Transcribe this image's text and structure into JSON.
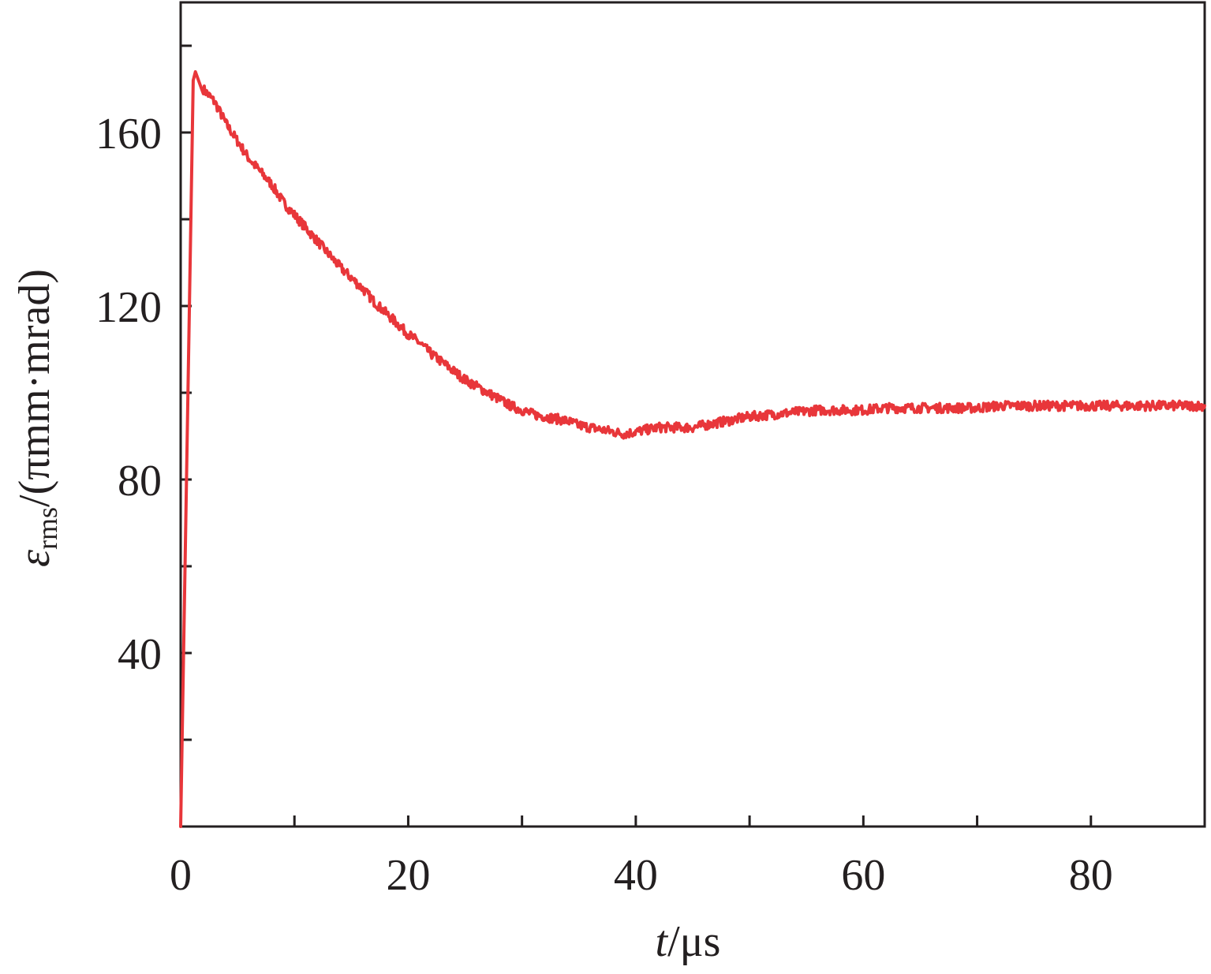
{
  "chart_data": {
    "type": "line",
    "title": "",
    "xlabel": {
      "var": "t",
      "unit": "/μs"
    },
    "ylabel": {
      "var": "ε",
      "sub": "rms",
      "unit": "/(πmm·mrad)"
    },
    "xlim": [
      0,
      90
    ],
    "ylim": [
      0,
      190
    ],
    "x_ticks": [
      0,
      20,
      40,
      60,
      80
    ],
    "x_minor_ticks": [
      10,
      30,
      50,
      70
    ],
    "y_ticks": [
      40,
      80,
      120,
      160
    ],
    "y_minor_ticks": [
      20,
      60,
      100,
      140,
      180
    ],
    "grid": false,
    "legend": "none",
    "series": [
      {
        "color": "#e8363a",
        "x": [
          0,
          1.1,
          1.3,
          2,
          3,
          4,
          5,
          6,
          7,
          8,
          9,
          10,
          11,
          12,
          13,
          14,
          15,
          16,
          17,
          18,
          19,
          20,
          21,
          22,
          23,
          24,
          25,
          26,
          27,
          28,
          29,
          30,
          31,
          32,
          33,
          34,
          35,
          36,
          37,
          38,
          39,
          40,
          41,
          42,
          43,
          44,
          45,
          46,
          47,
          48,
          49,
          50,
          52,
          54,
          56,
          58,
          60,
          62,
          64,
          66,
          68,
          70,
          72,
          74,
          76,
          78,
          80,
          82,
          84,
          86,
          88,
          90
        ],
        "y": [
          0,
          172,
          174,
          170,
          167,
          162,
          158,
          154,
          151,
          148,
          144,
          141,
          138,
          135,
          132,
          129,
          126.5,
          124,
          121,
          118.5,
          116,
          113.5,
          111.5,
          109,
          107,
          105,
          103,
          101.5,
          100,
          98.5,
          97,
          96,
          95,
          94.5,
          94,
          93.5,
          92.5,
          92,
          91.5,
          91,
          90.5,
          91,
          91.5,
          92,
          92,
          92,
          92,
          92.5,
          93,
          93.5,
          94,
          94.5,
          95,
          95.5,
          96,
          96,
          96,
          96.5,
          96.5,
          96.5,
          96.5,
          96.5,
          97,
          97,
          97,
          97,
          97,
          97,
          97,
          97,
          97,
          97
        ]
      }
    ]
  }
}
